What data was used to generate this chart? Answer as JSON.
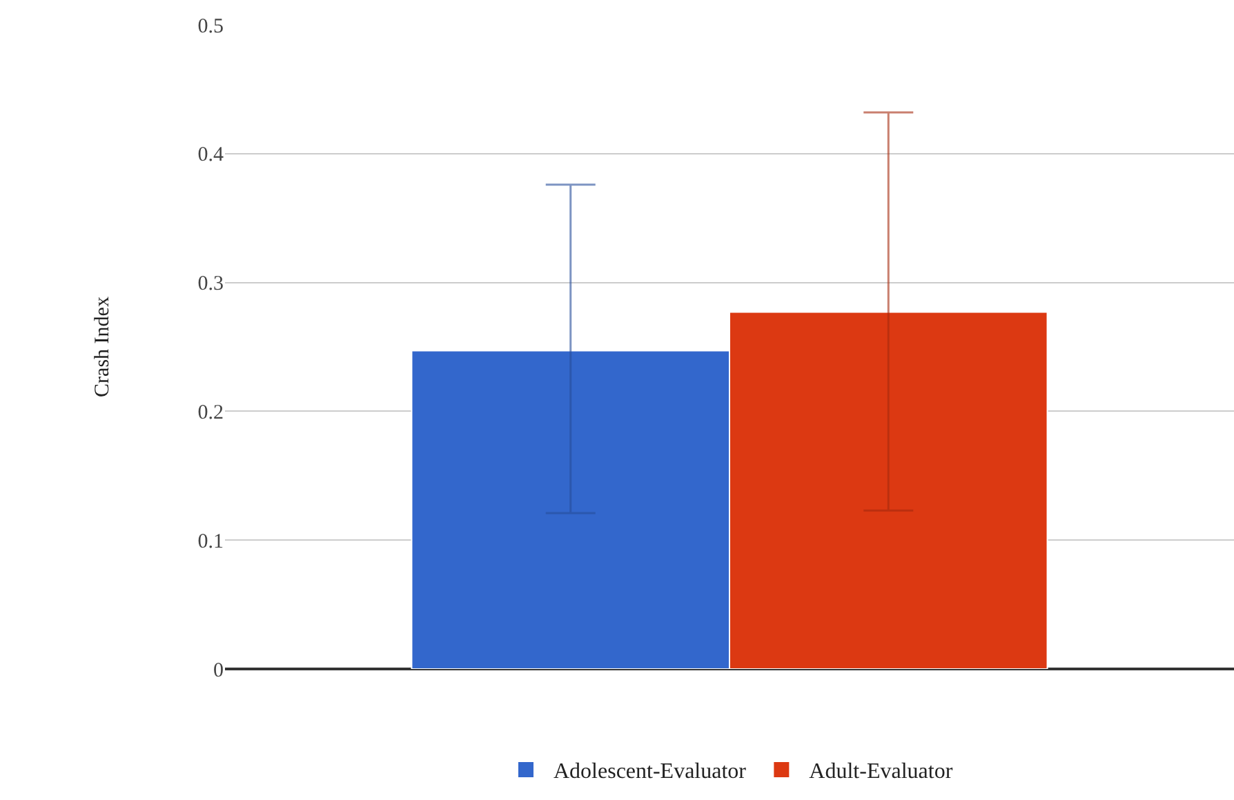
{
  "chart_data": {
    "type": "bar",
    "ylabel": "Crash Index",
    "categories": [
      null
    ],
    "series": [
      {
        "name": "Adolescent-Evaluator",
        "color": "#3367cc",
        "values": [
          0.247
        ],
        "errors": [
          [
            0.121,
            0.376
          ]
        ]
      },
      {
        "name": "Adult-Evaluator",
        "color": "#dc3912",
        "values": [
          0.277
        ],
        "errors": [
          [
            0.123,
            0.432
          ]
        ]
      }
    ],
    "ylim": [
      0,
      0.5
    ],
    "yticks": [
      0,
      0.1,
      0.2,
      0.3,
      0.4,
      0.5
    ],
    "grid": "y",
    "legend": "bottom"
  }
}
